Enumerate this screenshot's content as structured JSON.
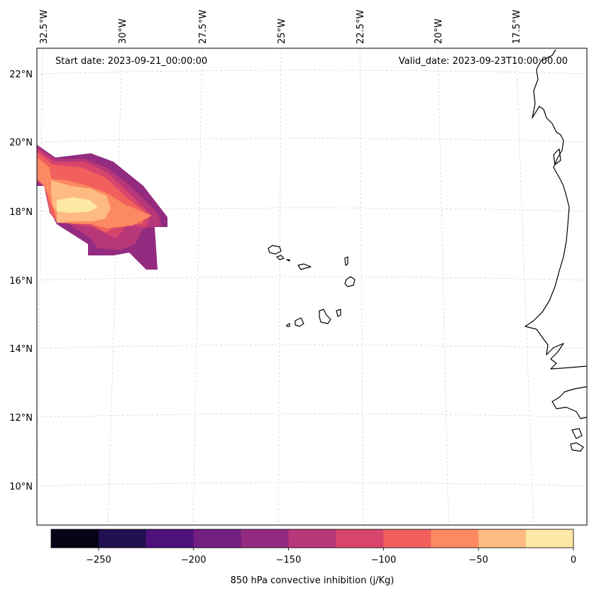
{
  "map": {
    "start_label": "Start date: 2023-09-21_00:00:00",
    "valid_label": "Valid_date: 2023-09-23T10:00:00.00",
    "lat_labels": [
      "22°N",
      "20°N",
      "18°N",
      "16°N",
      "14°N",
      "12°N",
      "10°N"
    ],
    "lon_labels": [
      "32.5°W",
      "30°W",
      "27.5°W",
      "25°W",
      "22.5°W",
      "20°W",
      "17.5°W"
    ],
    "gridline_color": "#cccccc",
    "coastline_color": "#000000"
  },
  "colorbar": {
    "label": "850 hPa convective inhibition (j/Kg)",
    "tick_labels": [
      "−250",
      "−200",
      "−150",
      "−100",
      "−50",
      "0"
    ],
    "levels": [
      -275,
      -250,
      -225,
      -200,
      -175,
      -150,
      -125,
      -100,
      -75,
      -50,
      -25,
      0
    ],
    "colors": [
      "#050416",
      "#221150",
      "#4e117b",
      "#721f81",
      "#932b80",
      "#b73779",
      "#d8456c",
      "#f1605d",
      "#fc8961",
      "#febb81",
      "#fde9a6"
    ]
  }
}
